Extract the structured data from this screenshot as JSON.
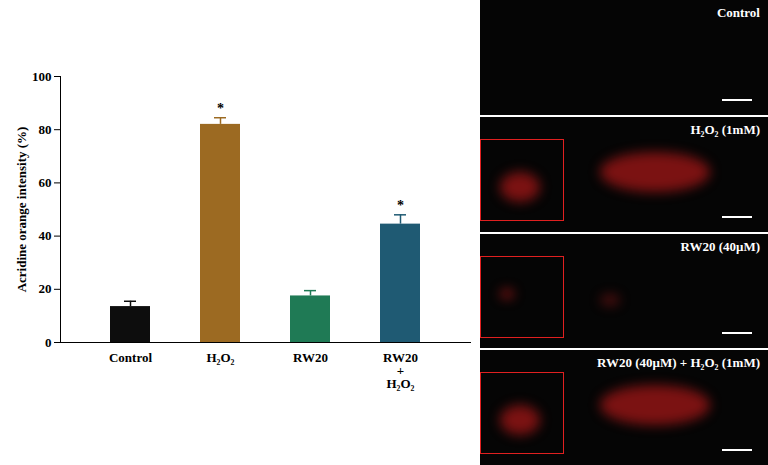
{
  "chart_data": {
    "type": "bar",
    "y_label": "Acridine orange intensity (%)",
    "categories": [
      "Control",
      "H₂O₂",
      "RW20",
      "RW20\n+\nH₂O₂"
    ],
    "values": [
      13.5,
      82,
      17.5,
      44.5
    ],
    "errors": [
      2,
      2.5,
      2,
      3.5
    ],
    "colors": [
      "#0d0d0d",
      "#9c6a22",
      "#1f7a55",
      "#1f5a73"
    ],
    "ylim": [
      0,
      100
    ],
    "yticks": [
      0,
      20,
      40,
      60,
      80,
      100
    ],
    "grid": false,
    "annotations": [
      {
        "category": "H₂O₂",
        "text": "*"
      },
      {
        "category": "RW20\n+\nH₂O₂",
        "text": "*"
      }
    ]
  },
  "images": [
    {
      "label": "Control",
      "inset": false
    },
    {
      "label": "H₂O₂ (1mM)",
      "inset": true
    },
    {
      "label": "RW20 (40μM)",
      "inset": true
    },
    {
      "label": "RW20 (40μM) + H₂O₂ (1mM)",
      "inset": true
    }
  ]
}
